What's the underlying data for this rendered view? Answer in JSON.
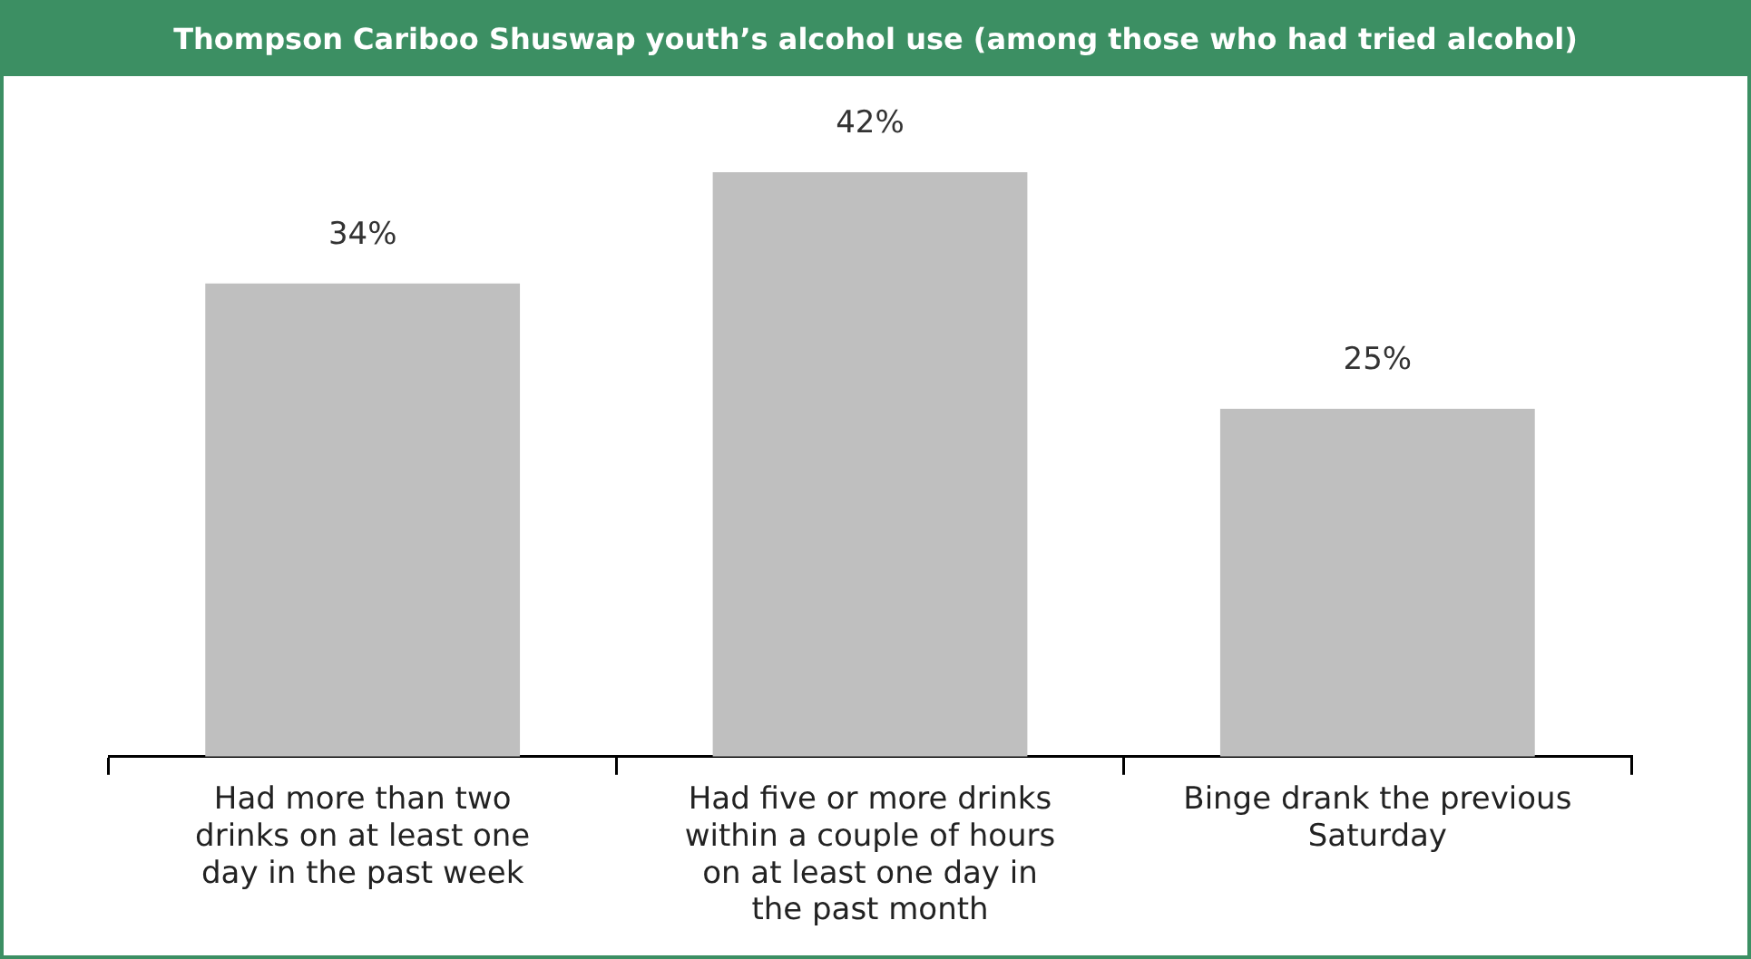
{
  "chart_data": {
    "type": "bar",
    "title": "Thompson Cariboo Shuswap youth’s alcohol use (among those who had tried alcohol)",
    "categories": [
      "Had more than two drinks on at least one day in the past week",
      "Had five or more drinks within a couple of hours on at least one day in the past month",
      "Binge drank the previous Saturday"
    ],
    "values": [
      34,
      42,
      25
    ],
    "color": "#bfbfbf",
    "value_labels": [
      "34%",
      "42%",
      "25%"
    ]
  }
}
